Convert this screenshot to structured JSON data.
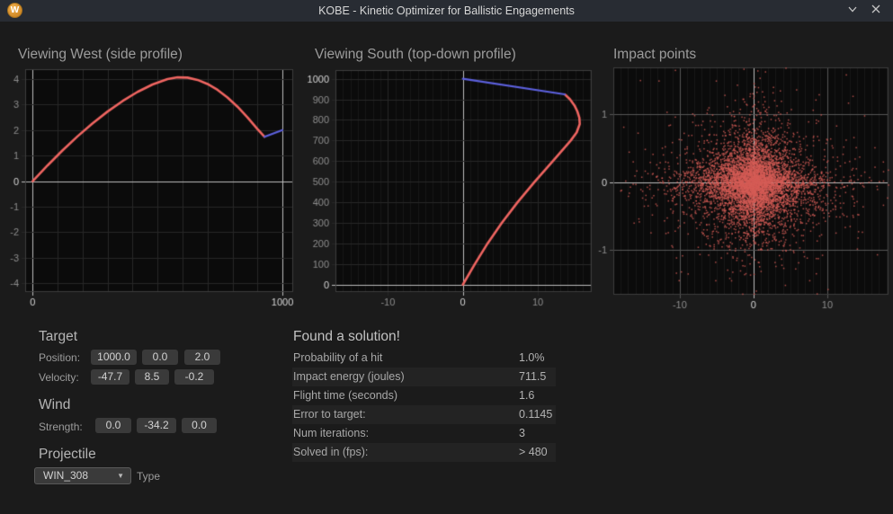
{
  "window": {
    "title": "KOBE - Kinetic Optimizer for Ballistic Engagements",
    "icon_letter": "W"
  },
  "colors": {
    "window_bg": "#1b1b1b",
    "titlebar_bg": "#282c33",
    "chart_bg": "#0b0b0b",
    "grid": "#272727",
    "grid_strong": "#565656",
    "grid_minor": "#181818",
    "axis_bright": "#bdbdbd",
    "frame": "#3e3e3e",
    "trajectory_red": "#ef6561",
    "target_blue": "#5c60dd",
    "scatter_red": "#d65d56",
    "accent_orange": "#d18a27"
  },
  "chart_data": [
    {
      "type": "line",
      "title": "Viewing West (side profile)",
      "xlim": [
        -30,
        1043
      ],
      "ylim": [
        -4.35,
        4.39
      ],
      "xticks": [
        {
          "v": 0,
          "label": "0",
          "bright_line": true,
          "bright_label": true
        },
        {
          "v": 100
        },
        {
          "v": 200
        },
        {
          "v": 300
        },
        {
          "v": 400
        },
        {
          "v": 500
        },
        {
          "v": 600
        },
        {
          "v": 700
        },
        {
          "v": 800
        },
        {
          "v": 900
        },
        {
          "v": 1000,
          "label": "1000",
          "bright_line": true,
          "bright_label": true
        }
      ],
      "yticks": [
        {
          "v": -4,
          "label": "-4"
        },
        {
          "v": -3,
          "label": "-3"
        },
        {
          "v": -2,
          "label": "-2"
        },
        {
          "v": -1,
          "label": "-1"
        },
        {
          "v": 0,
          "label": "0",
          "bright_line": true,
          "bright_label": true
        },
        {
          "v": 1,
          "label": "1"
        },
        {
          "v": 2,
          "label": "2"
        },
        {
          "v": 3,
          "label": "3"
        },
        {
          "v": 4,
          "label": "4"
        }
      ],
      "series": [
        {
          "name": "projectile-trajectory",
          "color": "#ef6561",
          "width": 2.6,
          "points": [
            [
              0,
              0
            ],
            [
              60,
              0.62
            ],
            [
              120,
              1.21
            ],
            [
              180,
              1.76
            ],
            [
              240,
              2.27
            ],
            [
              300,
              2.73
            ],
            [
              360,
              3.14
            ],
            [
              420,
              3.5
            ],
            [
              480,
              3.79
            ],
            [
              540,
              4.0
            ],
            [
              580,
              4.07
            ],
            [
              620,
              4.06
            ],
            [
              660,
              3.97
            ],
            [
              700,
              3.81
            ],
            [
              740,
              3.58
            ],
            [
              780,
              3.28
            ],
            [
              820,
              2.92
            ],
            [
              860,
              2.5
            ],
            [
              900,
              2.04
            ],
            [
              928,
              1.74
            ]
          ]
        },
        {
          "name": "target-path",
          "color": "#5c60dd",
          "width": 2.2,
          "points": [
            [
              928,
              1.74
            ],
            [
              1000,
              2.0
            ]
          ]
        }
      ]
    },
    {
      "type": "line",
      "title": "Viewing South (top-down profile)",
      "xlim": [
        -17.0,
        17.2
      ],
      "ylim": [
        -36,
        1042
      ],
      "minor_x_step": 1,
      "xticks": [
        {
          "v": -10,
          "label": "-10"
        },
        {
          "v": 0,
          "label": "0",
          "bright_line": true,
          "bright_label": true
        },
        {
          "v": 10,
          "label": "10"
        }
      ],
      "yticks": [
        {
          "v": 0,
          "label": "0",
          "bright_line": true,
          "bright_label": true
        },
        {
          "v": 100,
          "label": "100"
        },
        {
          "v": 200,
          "label": "200"
        },
        {
          "v": 300,
          "label": "300"
        },
        {
          "v": 400,
          "label": "400"
        },
        {
          "v": 500,
          "label": "500"
        },
        {
          "v": 600,
          "label": "600"
        },
        {
          "v": 700,
          "label": "700"
        },
        {
          "v": 800,
          "label": "800"
        },
        {
          "v": 900,
          "label": "900"
        },
        {
          "v": 1000,
          "label": "1000",
          "bright_label": true
        }
      ],
      "series": [
        {
          "name": "projectile-trajectory",
          "color": "#ef6561",
          "width": 2.6,
          "points": [
            [
              0,
              0
            ],
            [
              1.6,
              100
            ],
            [
              3.3,
              200
            ],
            [
              5.2,
              300
            ],
            [
              7.3,
              400
            ],
            [
              9.6,
              500
            ],
            [
              12.0,
              600
            ],
            [
              13.2,
              650
            ],
            [
              14.4,
              700
            ],
            [
              15.2,
              740
            ],
            [
              15.6,
              780
            ],
            [
              15.55,
              810
            ],
            [
              15.3,
              840
            ],
            [
              14.9,
              870
            ],
            [
              14.3,
              900
            ],
            [
              13.6,
              924
            ]
          ]
        },
        {
          "name": "target-path",
          "color": "#5c60dd",
          "width": 2.2,
          "points": [
            [
              0,
              1000
            ],
            [
              13.6,
              924
            ]
          ]
        }
      ]
    },
    {
      "type": "scatter",
      "title": "Impact points",
      "xlim": [
        -19.0,
        18.3
      ],
      "ylim": [
        -1.66,
        1.69
      ],
      "minor_x_step": 1,
      "xticks": [
        {
          "v": -10,
          "label": "-10",
          "strong": true
        },
        {
          "v": 0,
          "label": "0",
          "bright_line": true,
          "bright_label": true
        },
        {
          "v": 10,
          "label": "10",
          "strong": true
        }
      ],
      "yticks": [
        {
          "v": -1,
          "label": "-1",
          "strong": true
        },
        {
          "v": 0,
          "label": "0",
          "bright_line": true,
          "bright_label": true
        },
        {
          "v": 1,
          "label": "1",
          "strong": true
        }
      ],
      "scatter": {
        "description": "Monte Carlo impact dispersion centered on (0,0)",
        "center": [
          0,
          0
        ],
        "distribution": "laplace",
        "core": {
          "n": 6200,
          "scale_x": 3.0,
          "scale_y": 0.25
        },
        "spread": {
          "n": 420,
          "scale_x": 6.5,
          "scale_y": 0.5
        },
        "seed": 1337,
        "color": "#d65d56",
        "alpha": 0.8,
        "point_size": 1.5
      }
    }
  ],
  "controls": {
    "target": {
      "heading": "Target",
      "position": {
        "label": "Position:",
        "values": [
          "1000.0",
          "0.0",
          "2.0"
        ]
      },
      "velocity": {
        "label": "Velocity:",
        "values": [
          "-47.7",
          "8.5",
          "-0.2"
        ]
      }
    },
    "wind": {
      "heading": "Wind",
      "strength": {
        "label": "Strength:",
        "values": [
          "0.0",
          "-34.2",
          "0.0"
        ]
      }
    },
    "projectile": {
      "heading": "Projectile",
      "type_value": "WIN_308",
      "type_label": "Type",
      "dropdown_arrow": "▼"
    }
  },
  "solution": {
    "heading": "Found a solution!",
    "rows": [
      {
        "label": "Probability of a hit",
        "value": "1.0%"
      },
      {
        "label": "Impact energy (joules)",
        "value": "711.5"
      },
      {
        "label": "Flight time (seconds)",
        "value": "1.6"
      },
      {
        "label": "Error to target:",
        "value": "0.1145"
      },
      {
        "label": "Num iterations:",
        "value": "3"
      },
      {
        "label": "Solved in (fps):",
        "value": "> 480"
      }
    ]
  }
}
